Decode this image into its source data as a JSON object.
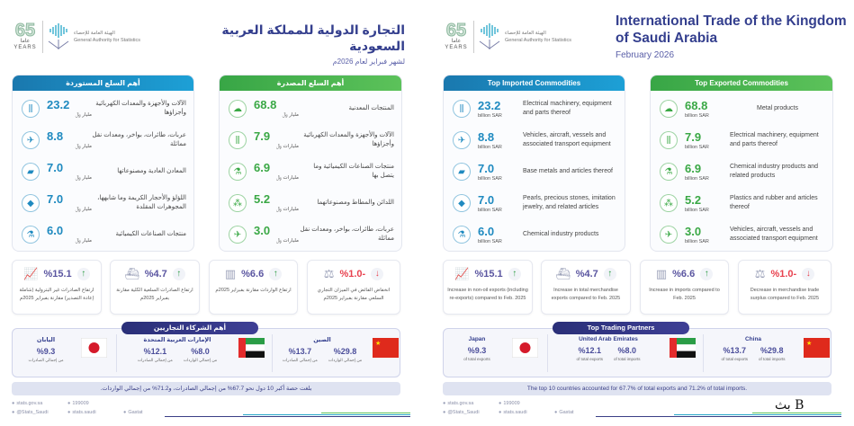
{
  "en": {
    "dir": "ltr",
    "logo": {
      "years_num": "65",
      "years_label": "عاما YEARS",
      "org_ar": "الهيئة العامة للإحصاء",
      "org_en": "General Authority for Statistics"
    },
    "title": "International Trade of the Kingdom of Saudi Arabia",
    "subtitle": "February 2026",
    "imports": {
      "header": "Top Imported Commodities",
      "items": [
        {
          "icon": "machinery-icon",
          "glyph": "⫼",
          "value": "23.2",
          "unit": "billion SAR",
          "desc": "Electrical machinery, equipment and parts thereof"
        },
        {
          "icon": "airplane-icon",
          "glyph": "✈",
          "value": "8.8",
          "unit": "billion SAR",
          "desc": "Vehicles, aircraft, vessels and associated transport equipment"
        },
        {
          "icon": "metal-bars-icon",
          "glyph": "▰",
          "value": "7.0",
          "unit": "billion SAR",
          "desc": "Base metals and articles thereof"
        },
        {
          "icon": "diamond-icon",
          "glyph": "◆",
          "value": "7.0",
          "unit": "billion SAR",
          "desc": "Pearls, precious stones, imitation jewelry, and related articles"
        },
        {
          "icon": "flask-icon",
          "glyph": "⚗",
          "value": "6.0",
          "unit": "billion SAR",
          "desc": "Chemical industry products"
        }
      ]
    },
    "exports": {
      "header": "Top Exported Commodities",
      "items": [
        {
          "icon": "metal-ore-icon",
          "glyph": "☁",
          "value": "68.8",
          "unit": "billion SAR",
          "desc": "Metal products"
        },
        {
          "icon": "machinery-icon",
          "glyph": "⫼",
          "value": "7.9",
          "unit": "billion SAR",
          "desc": "Electrical machinery, equipment and parts thereof"
        },
        {
          "icon": "flask-icon",
          "glyph": "⚗",
          "value": "6.9",
          "unit": "billion SAR",
          "desc": "Chemical industry products and related products"
        },
        {
          "icon": "molecule-icon",
          "glyph": "⁂",
          "value": "5.2",
          "unit": "billion SAR",
          "desc": "Plastics and rubber and articles thereof"
        },
        {
          "icon": "airplane-icon",
          "glyph": "✈",
          "value": "3.0",
          "unit": "billion SAR",
          "desc": "Vehicles, aircraft, vessels and associated transport equipment"
        }
      ]
    },
    "stats": [
      {
        "icon": "growth-chart-icon",
        "glyph": "📈",
        "value": "%15.1",
        "trend": "up",
        "desc": "Increase in non-oil exports (including re-exports) compared to Feb. 2025"
      },
      {
        "icon": "cargo-ship-icon",
        "glyph": "⛴",
        "value": "%4.7",
        "trend": "up",
        "desc": "Increase in total merchandise exports compared to Feb. 2025"
      },
      {
        "icon": "container-icon",
        "glyph": "▥",
        "value": "%6.6",
        "trend": "up",
        "desc": "Increase in imports compared to Feb. 2025"
      },
      {
        "icon": "balance-scale-icon",
        "glyph": "⚖",
        "value": "%1.0-",
        "trend": "down",
        "desc": "Decrease in merchandise trade surplus compared to Feb. 2025"
      }
    ],
    "partners": {
      "header": "Top Trading Partners",
      "japan": {
        "name": "Japan",
        "exports": "%9.3",
        "exports_label": "of total exports"
      },
      "uae": {
        "name": "United Arab Emirates",
        "exports": "%12.1",
        "exports_label": "of total exports",
        "imports": "%8.0",
        "imports_label": "of total imports"
      },
      "china": {
        "name": "China",
        "exports": "%13.7",
        "exports_label": "of total exports",
        "imports": "%29.8",
        "imports_label": "of total imports"
      }
    },
    "footer_note": "The top 10 countries accounted for 67.7% of total exports and 71.2% of total imports.",
    "links": [
      "stats.gov.sa",
      "199009",
      "",
      "@Stats_Saudi",
      "stats.saudi",
      "Gastat"
    ],
    "watermark": "بث B"
  },
  "ar": {
    "dir": "rtl",
    "logo": {
      "years_num": "65",
      "years_label": "عاما YEARS",
      "org_ar": "الهيئة العامة للإحصاء",
      "org_en": "General Authority for Statistics"
    },
    "title": "التجارة الدولية للمملكة العربية السعودية",
    "subtitle": "لشهر فبراير لعام 2026م",
    "imports": {
      "header": "أهم السلع المستوردة",
      "items": [
        {
          "icon": "machinery-icon",
          "glyph": "⫼",
          "value": "23.2",
          "unit": "مليار ﷼",
          "desc": "الآلات والأجهزة والمعدات الكهربائية وأجزاؤها"
        },
        {
          "icon": "airplane-icon",
          "glyph": "✈",
          "value": "8.8",
          "unit": "مليار ﷼",
          "desc": "عربات، طائرات، بواخر، ومعدات نقل مماثلة"
        },
        {
          "icon": "metal-bars-icon",
          "glyph": "▰",
          "value": "7.0",
          "unit": "مليار ﷼",
          "desc": "المعادن العادية ومصنوعاتها"
        },
        {
          "icon": "diamond-icon",
          "glyph": "◆",
          "value": "7.0",
          "unit": "مليار ﷼",
          "desc": "اللؤلؤ والأحجار الكريمة وما شابهها، المجوهرات المقلدة"
        },
        {
          "icon": "flask-icon",
          "glyph": "⚗",
          "value": "6.0",
          "unit": "مليار ﷼",
          "desc": "منتجات الصناعات الكيميائية"
        }
      ]
    },
    "exports": {
      "header": "أهم السلع المصدرة",
      "items": [
        {
          "icon": "metal-ore-icon",
          "glyph": "☁",
          "value": "68.8",
          "unit": "مليار ﷼",
          "desc": "المنتجات المعدنية"
        },
        {
          "icon": "machinery-icon",
          "glyph": "⫼",
          "value": "7.9",
          "unit": "مليارات ﷼",
          "desc": "الآلات والأجهزة والمعدات الكهربائية وأجزاؤها"
        },
        {
          "icon": "flask-icon",
          "glyph": "⚗",
          "value": "6.9",
          "unit": "مليارات ﷼",
          "desc": "منتجات الصناعات الكيميائية وما يتصل بها"
        },
        {
          "icon": "molecule-icon",
          "glyph": "⁂",
          "value": "5.2",
          "unit": "مليارات ﷼",
          "desc": "اللدائن والمطاط ومصنوعاتهما"
        },
        {
          "icon": "airplane-icon",
          "glyph": "✈",
          "value": "3.0",
          "unit": "مليارات ﷼",
          "desc": "عربات، طائرات، بواخر، ومعدات نقل مماثلة"
        }
      ]
    },
    "stats": [
      {
        "icon": "growth-chart-icon",
        "glyph": "📈",
        "value": "%15.1",
        "trend": "up",
        "desc": "ارتفاع الصادرات غير البترولية (شاملة إعادة التصدير) مقارنة بفبراير 2025م"
      },
      {
        "icon": "cargo-ship-icon",
        "glyph": "⛴",
        "value": "%4.7",
        "trend": "up",
        "desc": "ارتفاع الصادرات السلعية الكلية مقارنة بفبراير 2025م"
      },
      {
        "icon": "container-icon",
        "glyph": "▥",
        "value": "%6.6",
        "trend": "up",
        "desc": "ارتفاع الواردات مقارنة بفبراير 2025م"
      },
      {
        "icon": "balance-scale-icon",
        "glyph": "⚖",
        "value": "%1.0-",
        "trend": "down",
        "desc": "انخفاض الفائض في الميزان التجاري السلعي مقارنة بفبراير 2025م"
      }
    ],
    "partners": {
      "header": "أهم الشركاء التجاريين",
      "japan": {
        "name": "اليابان",
        "exports": "%9.3",
        "exports_label": "من إجمالي الصادرات"
      },
      "uae": {
        "name": "الإمارات العربية المتحدة",
        "exports": "%12.1",
        "exports_label": "من إجمالي الصادرات",
        "imports": "%8.0",
        "imports_label": "من إجمالي الواردات"
      },
      "china": {
        "name": "الصين",
        "exports": "%13.7",
        "exports_label": "من إجمالي الصادرات",
        "imports": "%29.8",
        "imports_label": "من إجمالي الواردات"
      }
    },
    "footer_note": "بلغت حصة أكبر 10 دول نحو 67.7% من إجمالي الصادرات، و71.2% من إجمالي الواردات.",
    "links": [
      "stats.gov.sa",
      "199009",
      "",
      "@Stats_Saudi",
      "stats.saudi",
      "Gastat"
    ]
  },
  "colors": {
    "import_blue": "#1f8ac0",
    "export_green": "#3aa845",
    "navy": "#343f8e",
    "negative": "#e8424f",
    "positive": "#2e9e45"
  }
}
